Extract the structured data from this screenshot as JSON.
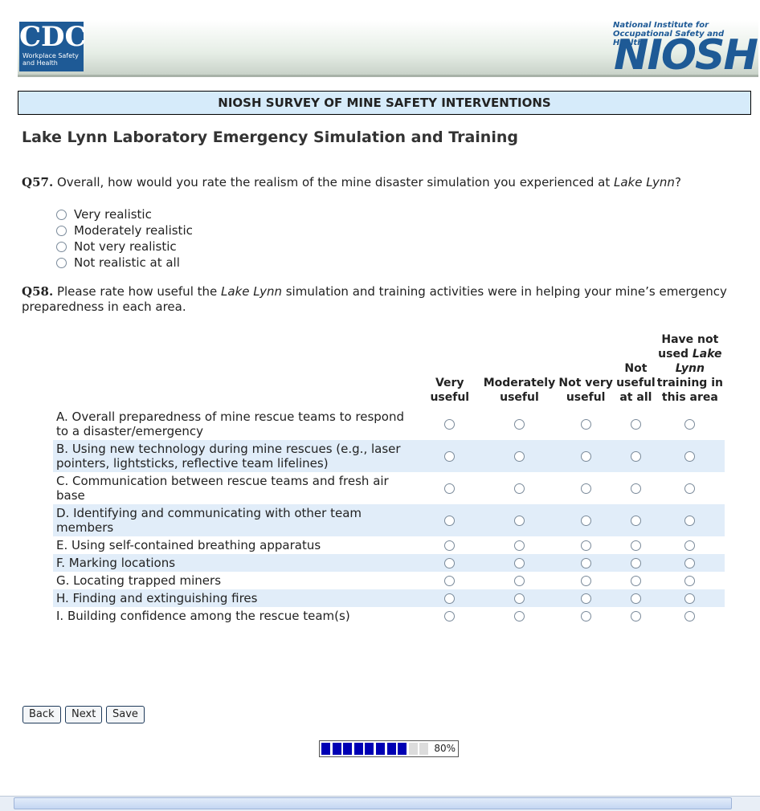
{
  "header": {
    "cdc_logo": "CDC",
    "cdc_tagline": "Workplace Safety and Health",
    "niosh_tagline": "National Institute for Occupational Safety and Health",
    "niosh_logo": "NIOSH"
  },
  "banner": "NIOSH SURVEY OF MINE SAFETY INTERVENTIONS",
  "section_title": "Lake Lynn Laboratory Emergency Simulation and Training",
  "q57": {
    "number": "Q57.",
    "text_before": "Overall, how would you rate the realism of the mine disaster simulation you experienced at ",
    "emphasis": "Lake Lynn",
    "text_after": "?",
    "options": [
      "Very realistic",
      "Moderately realistic",
      "Not very realistic",
      "Not realistic at all"
    ]
  },
  "q58": {
    "number": "Q58.",
    "text_before": "Please rate how useful the ",
    "emphasis": "Lake Lynn",
    "text_after": " simulation and training activities were in helping your mine’s emergency preparedness in each area.",
    "columns": [
      {
        "text": "Very useful"
      },
      {
        "text": "Moderately useful"
      },
      {
        "text": "Not very useful"
      },
      {
        "text": "Not useful at all"
      },
      {
        "text": "Have not used",
        "emphasis": "Lake Lynn",
        "text_after": "training in this area"
      }
    ],
    "rows": [
      "A. Overall preparedness of mine rescue teams to respond to a disaster/emergency",
      "B. Using new technology during mine rescues (e.g., laser pointers, lightsticks, reflective team lifelines)",
      "C. Communication between rescue teams and fresh air base",
      "D. Identifying and communicating with other team members",
      "E. Using self-contained breathing apparatus",
      "F. Marking locations",
      "G. Locating trapped miners",
      "H. Finding and extinguishing fires",
      "I. Building confidence among the rescue team(s)"
    ]
  },
  "buttons": [
    "Back",
    "Next",
    "Save"
  ],
  "progress": {
    "value": 80,
    "label": "80%"
  }
}
